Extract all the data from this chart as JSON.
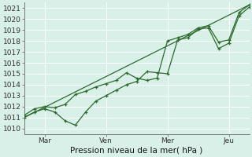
{
  "bg_color": "#d8f0e8",
  "plot_bg": "#d8f0e8",
  "grid_color": "#ffffff",
  "line_color": "#2d6a2d",
  "ylabel_text": "Pression niveau de la mer( hPa )",
  "ylim": [
    1009.5,
    1021.5
  ],
  "yticks": [
    1010,
    1011,
    1012,
    1013,
    1014,
    1015,
    1016,
    1017,
    1018,
    1019,
    1020,
    1021
  ],
  "xtick_labels": [
    "Mar",
    "Ven",
    "Mer",
    "Jeu"
  ],
  "xtick_positions": [
    24,
    96,
    168,
    240
  ],
  "xlim": [
    0,
    264
  ],
  "trend_x": [
    0,
    264
  ],
  "trend_y": [
    1011.0,
    1021.3
  ],
  "series1_x": [
    0,
    12,
    24,
    36,
    48,
    60,
    72,
    84,
    96,
    108,
    120,
    132,
    144,
    156,
    168,
    180,
    192,
    204,
    216,
    228,
    240,
    252,
    264
  ],
  "series1_y": [
    1011.0,
    1011.5,
    1011.8,
    1011.5,
    1010.7,
    1010.3,
    1011.5,
    1012.5,
    1013.0,
    1013.5,
    1014.0,
    1014.3,
    1015.2,
    1015.1,
    1015.0,
    1018.1,
    1018.3,
    1019.1,
    1019.2,
    1017.3,
    1017.8,
    1020.3,
    1021.1
  ],
  "series2_x": [
    0,
    12,
    24,
    36,
    48,
    60,
    72,
    84,
    96,
    108,
    120,
    132,
    144,
    156,
    168,
    180,
    192,
    204,
    216,
    228,
    240,
    252,
    264
  ],
  "series2_y": [
    1011.2,
    1011.8,
    1012.0,
    1011.9,
    1012.2,
    1013.1,
    1013.4,
    1013.8,
    1014.1,
    1014.4,
    1015.1,
    1014.6,
    1014.4,
    1014.6,
    1018.0,
    1018.3,
    1018.6,
    1019.2,
    1019.4,
    1017.9,
    1018.1,
    1020.6,
    1021.3
  ],
  "ylabel_fontsize": 7.5,
  "tick_fontsize": 6.5
}
